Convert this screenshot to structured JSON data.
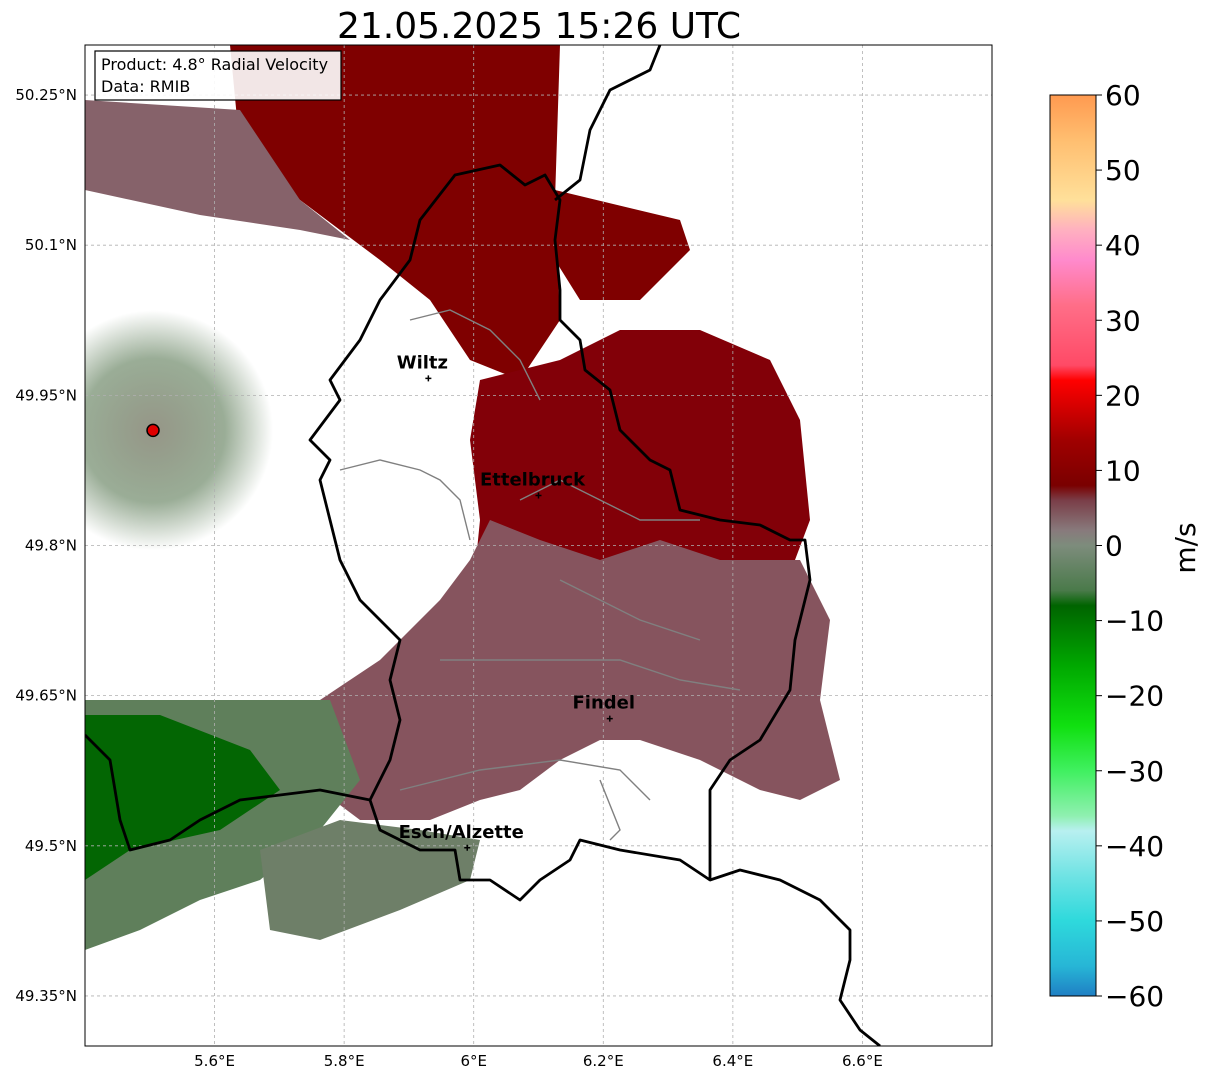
{
  "title": "21.05.2025 15:26 UTC",
  "info_box": {
    "product": "Product: 4.8° Radial Velocity",
    "data": "Data: RMIB"
  },
  "axes": {
    "lon_range": [
      5.4,
      6.8
    ],
    "lat_range": [
      49.3,
      50.3
    ],
    "x_ticks": [
      {
        "value": 5.6,
        "label": "5.6°E"
      },
      {
        "value": 5.8,
        "label": "5.8°E"
      },
      {
        "value": 6.0,
        "label": "6°E"
      },
      {
        "value": 6.2,
        "label": "6.2°E"
      },
      {
        "value": 6.4,
        "label": "6.4°E"
      },
      {
        "value": 6.6,
        "label": "6.6°E"
      }
    ],
    "y_ticks": [
      {
        "value": 50.25,
        "label": "50.25°N"
      },
      {
        "value": 50.1,
        "label": "50.1°N"
      },
      {
        "value": 49.95,
        "label": "49.95°N"
      },
      {
        "value": 49.8,
        "label": "49.8°N"
      },
      {
        "value": 49.65,
        "label": "49.65°N"
      },
      {
        "value": 49.5,
        "label": "49.5°N"
      },
      {
        "value": 49.35,
        "label": "49.35°N"
      }
    ],
    "grid": true
  },
  "cities": [
    {
      "name": "Wiltz",
      "lon": 5.93,
      "lat": 49.967
    },
    {
      "name": "Ettelbruck",
      "lon": 6.1,
      "lat": 49.85
    },
    {
      "name": "Findel",
      "lon": 6.21,
      "lat": 49.627
    },
    {
      "name": "Esch/Alzette",
      "lon": 5.99,
      "lat": 49.498
    }
  ],
  "radar_site": {
    "lon": 5.505,
    "lat": 49.915
  },
  "colorbar": {
    "label": "m/s",
    "min": -60,
    "max": 60,
    "ticks": [
      {
        "value": 60,
        "label": "60"
      },
      {
        "value": 50,
        "label": "50"
      },
      {
        "value": 40,
        "label": "40"
      },
      {
        "value": 30,
        "label": "30"
      },
      {
        "value": 20,
        "label": "20"
      },
      {
        "value": 10,
        "label": "10"
      },
      {
        "value": 0,
        "label": "0"
      },
      {
        "value": -10,
        "label": "−10"
      },
      {
        "value": -20,
        "label": "−20"
      },
      {
        "value": -30,
        "label": "−30"
      },
      {
        "value": -40,
        "label": "−40"
      },
      {
        "value": -50,
        "label": "−50"
      },
      {
        "value": -60,
        "label": "−60"
      }
    ],
    "stops": [
      {
        "value": -60,
        "color": "#1f7fc4"
      },
      {
        "value": -56,
        "color": "#27b6d6"
      },
      {
        "value": -50,
        "color": "#2ed9dc"
      },
      {
        "value": -44,
        "color": "#6fe3e4"
      },
      {
        "value": -38,
        "color": "#b8f0f0"
      },
      {
        "value": -36,
        "color": "#8ff0b0"
      },
      {
        "value": -30,
        "color": "#40f060"
      },
      {
        "value": -24,
        "color": "#10e010"
      },
      {
        "value": -16,
        "color": "#00a800"
      },
      {
        "value": -8,
        "color": "#006400"
      },
      {
        "value": -6,
        "color": "#4a7a4a"
      },
      {
        "value": 0,
        "color": "#7d8c7c"
      },
      {
        "value": 2,
        "color": "#887a7c"
      },
      {
        "value": 6,
        "color": "#7a3e48"
      },
      {
        "value": 8,
        "color": "#7a0000"
      },
      {
        "value": 14,
        "color": "#a00000"
      },
      {
        "value": 22,
        "color": "#ff0000"
      },
      {
        "value": 24,
        "color": "#ff4a66"
      },
      {
        "value": 32,
        "color": "#ff6e88"
      },
      {
        "value": 38,
        "color": "#ff8acc"
      },
      {
        "value": 42,
        "color": "#ffb0c0"
      },
      {
        "value": 46,
        "color": "#ffe09a"
      },
      {
        "value": 54,
        "color": "#ffbe70"
      },
      {
        "value": 60,
        "color": "#ff9a50"
      }
    ]
  },
  "colors": {
    "approaching_dark": "#006400",
    "approaching_mid": "#5b7d58",
    "near_zero": "#86757a",
    "receding_mid": "#7d4048",
    "receding_strong": "#7a0000",
    "radar_marker": "#e00000"
  }
}
